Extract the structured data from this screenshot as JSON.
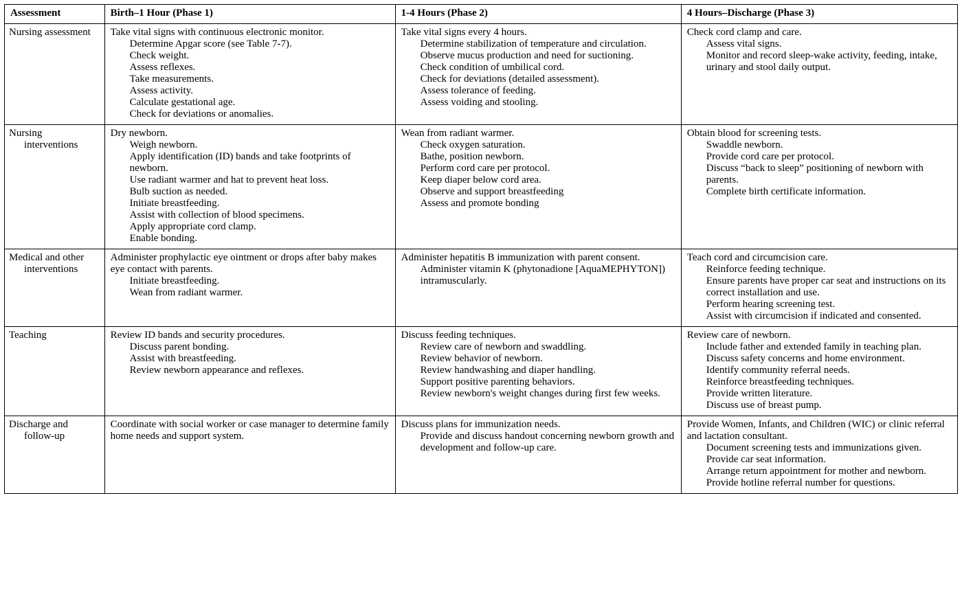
{
  "headers": {
    "col0": "Assessment",
    "col1": "Birth–1 Hour (Phase 1)",
    "col2": "1-4 Hours (Phase 2)",
    "col3": "4 Hours–Discharge (Phase 3)"
  },
  "rows": [
    {
      "label_lines": [
        "Nursing assessment"
      ],
      "phase1": {
        "lead": "Take vital signs with continuous electronic monitor.",
        "subs": [
          "Determine Apgar score (see Table 7-7).",
          "Check weight.",
          "Assess reflexes.",
          "Take measurements.",
          "Assess activity.",
          "Calculate gestational age.",
          "Check for deviations or anomalies."
        ]
      },
      "phase2": {
        "lead": "Take vital signs every 4 hours.",
        "subs": [
          "Determine stabilization of temperature and circulation.",
          "Observe mucus production and need for suctioning.",
          "Check condition of umbilical cord.",
          "Check for deviations (detailed assessment).",
          "Assess tolerance of feeding.",
          "Assess voiding and stooling."
        ]
      },
      "phase3": {
        "lead": "Check cord clamp and care.",
        "subs": [
          "Assess vital signs.",
          "Monitor and record sleep-wake activity, feeding, intake, urinary and stool daily output."
        ]
      }
    },
    {
      "label_lines": [
        "Nursing",
        "interventions"
      ],
      "phase1": {
        "lead": "Dry newborn.",
        "subs": [
          "Weigh newborn.",
          "Apply identification (ID) bands and take footprints of newborn.",
          "Use radiant warmer and hat to prevent heat loss.",
          "Bulb suction as needed.",
          "Initiate breastfeeding.",
          "Assist with collection of blood specimens.",
          "Apply appropriate cord clamp.",
          "Enable bonding."
        ]
      },
      "phase2": {
        "lead": "Wean from radiant warmer.",
        "subs": [
          "Check oxygen saturation.",
          "Bathe, position newborn.",
          "Perform cord care per protocol.",
          "Keep diaper below cord area.",
          "Observe and support breastfeeding",
          "Assess and promote bonding"
        ]
      },
      "phase3": {
        "lead": "Obtain blood for screening tests.",
        "subs": [
          "Swaddle newborn.",
          "Provide cord care per protocol.",
          "Discuss “back to sleep” positioning of newborn with parents.",
          "Complete birth certificate information."
        ]
      }
    },
    {
      "label_lines": [
        "Medical and other",
        "interventions"
      ],
      "phase1": {
        "lead": "Administer prophylactic eye ointment or drops after baby makes eye contact with parents.",
        "subs": [
          "Initiate breastfeeding.",
          "Wean from radiant warmer."
        ]
      },
      "phase2": {
        "lead": "Administer hepatitis B immunization with parent consent.",
        "subs": [
          "Administer vitamin K (phytonadione [AquaMEPHYTON]) intramuscularly."
        ]
      },
      "phase3": {
        "lead": "Teach cord and circumcision care.",
        "subs": [
          "Reinforce feeding technique.",
          "Ensure parents have proper car seat and instructions on its correct installation and use.",
          "Perform hearing screening test.",
          "Assist with circumcision if indicated and consented."
        ]
      }
    },
    {
      "label_lines": [
        "Teaching"
      ],
      "phase1": {
        "lead": "Review ID bands and security procedures.",
        "subs": [
          "Discuss parent bonding.",
          "Assist with breastfeeding.",
          "Review newborn appearance and reflexes."
        ]
      },
      "phase2": {
        "lead": "Discuss feeding techniques.",
        "subs": [
          "Review care of newborn and swaddling.",
          "Review behavior of newborn.",
          "Review handwashing and diaper handling.",
          "Support positive parenting behaviors.",
          "Review newborn's weight changes during first few weeks."
        ]
      },
      "phase3": {
        "lead": "Review care of newborn.",
        "subs": [
          "Include father and extended family in teaching plan.",
          "Discuss safety concerns and home environment.",
          "Identify community referral needs.",
          "Reinforce breastfeeding techniques.",
          "Provide written literature.",
          "Discuss use of breast pump."
        ]
      }
    },
    {
      "label_lines": [
        "Discharge and",
        "follow-up"
      ],
      "phase1": {
        "lead": "Coordinate with social worker or case manager to determine family home needs and support system.",
        "subs": []
      },
      "phase2": {
        "lead": "Discuss plans for immunization needs.",
        "subs": [
          "Provide and discuss handout concerning newborn growth and development and follow-up care."
        ]
      },
      "phase3": {
        "lead": "Provide Women, Infants, and Children (WIC) or clinic referral and lactation consultant.",
        "subs": [
          "Document screening tests and immunizations given.",
          "Provide car seat information.",
          "Arrange return appointment for mother and newborn.",
          "Provide hotline referral number for questions."
        ]
      }
    }
  ]
}
